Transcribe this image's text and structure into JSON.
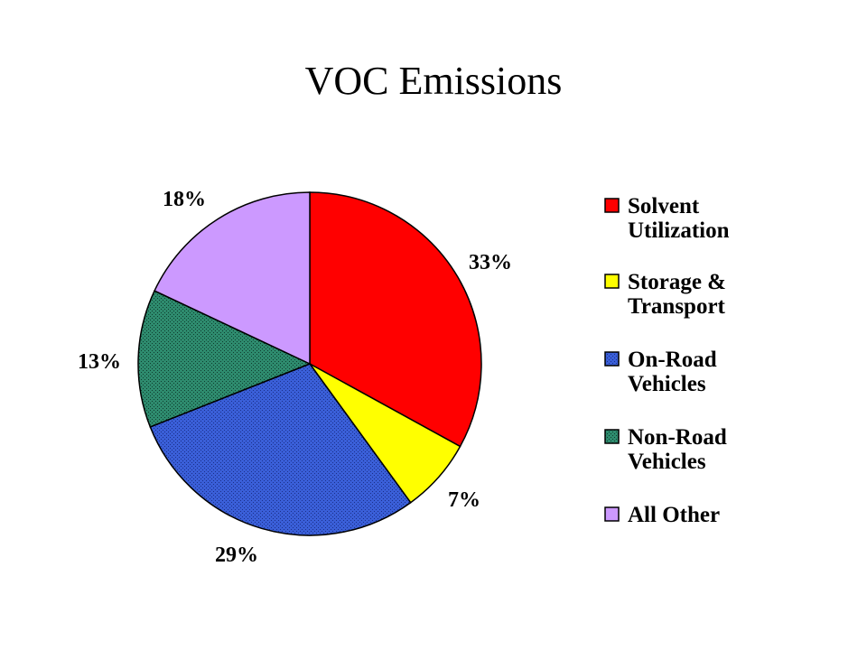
{
  "title": "VOC Emissions",
  "chart_data": {
    "type": "pie",
    "title": "VOC Emissions",
    "categories": [
      "Solvent Utilization",
      "Storage & Transport",
      "On-Road Vehicles",
      "Non-Road Vehicles",
      "All Other"
    ],
    "legend_lines": [
      [
        "Solvent",
        "Utilization"
      ],
      [
        "Storage &",
        "Transport"
      ],
      [
        "On-Road",
        "Vehicles"
      ],
      [
        "Non-Road",
        "Vehicles"
      ],
      [
        "All Other"
      ]
    ],
    "values": [
      33,
      7,
      29,
      13,
      18
    ],
    "labels": [
      "33%",
      "7%",
      "29%",
      "13%",
      "18%"
    ],
    "colors": [
      "#ff0000",
      "#ffff00",
      "#3a5fd8",
      "#2e8b6e",
      "#cc99ff"
    ],
    "patterned": [
      false,
      false,
      true,
      true,
      false
    ],
    "start": "12 o'clock",
    "direction": "clockwise",
    "legend_position": "right"
  }
}
